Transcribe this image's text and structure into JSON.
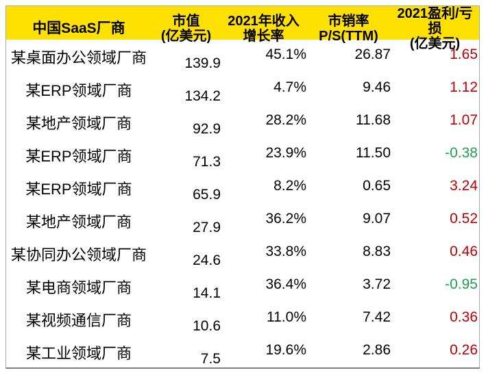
{
  "colors": {
    "header_bg": "#ffe100",
    "header_text": "#000000",
    "body_text": "#000000",
    "profit_positive": "#c00000",
    "profit_negative": "#21a04e",
    "border": "#a8a8a8"
  },
  "header": {
    "vendor": "中国SaaS厂商",
    "cap_line1": "市值",
    "cap_line2": "(亿美元)",
    "growth_line1": "2021年收入",
    "growth_line2": "增长率",
    "ps_line1": "市销率",
    "ps_line2": "P/S(TTM)",
    "profit_line1": "2021盈利/亏损",
    "profit_line2": "(亿美元)"
  },
  "rows": [
    {
      "vendor": "某桌面办公领域厂商",
      "cap": "139.9",
      "growth": "45.1%",
      "ps": "26.87",
      "profit": "1.65",
      "profit_color": "#c00000"
    },
    {
      "vendor": "某ERP领域厂商",
      "cap": "134.2",
      "growth": "4.7%",
      "ps": "9.46",
      "profit": "1.12",
      "profit_color": "#c00000"
    },
    {
      "vendor": "某地产领域厂商",
      "cap": "92.9",
      "growth": "28.2%",
      "ps": "11.68",
      "profit": "1.07",
      "profit_color": "#c00000"
    },
    {
      "vendor": "某ERP领域厂商",
      "cap": "71.3",
      "growth": "23.9%",
      "ps": "11.50",
      "profit": "-0.38",
      "profit_color": "#21a04e"
    },
    {
      "vendor": "某ERP领域厂商",
      "cap": "65.9",
      "growth": "8.2%",
      "ps": "0.65",
      "profit": "3.24",
      "profit_color": "#c00000"
    },
    {
      "vendor": "某地产领域厂商",
      "cap": "27.9",
      "growth": "36.2%",
      "ps": "9.07",
      "profit": "0.52",
      "profit_color": "#c00000"
    },
    {
      "vendor": "某协同办公领域厂商",
      "cap": "24.6",
      "growth": "33.8%",
      "ps": "8.83",
      "profit": "0.46",
      "profit_color": "#c00000"
    },
    {
      "vendor": "某电商领域厂商",
      "cap": "14.1",
      "growth": "36.4%",
      "ps": "3.72",
      "profit": "-0.95",
      "profit_color": "#21a04e"
    },
    {
      "vendor": "某视频通信厂商",
      "cap": "10.6",
      "growth": "11.0%",
      "ps": "7.42",
      "profit": "0.36",
      "profit_color": "#c00000"
    },
    {
      "vendor": "某工业领域厂商",
      "cap": "7.5",
      "growth": "19.6%",
      "ps": "2.86",
      "profit": "0.26",
      "profit_color": "#c00000"
    }
  ],
  "chart_data": {
    "type": "table",
    "columns": [
      "中国SaaS厂商",
      "市值(亿美元)",
      "2021年收入增长率",
      "市销率P/S(TTM)",
      "2021盈利/亏损(亿美元)"
    ],
    "rows": [
      [
        "某桌面办公领域厂商",
        139.9,
        "45.1%",
        26.87,
        1.65
      ],
      [
        "某ERP领域厂商",
        134.2,
        "4.7%",
        9.46,
        1.12
      ],
      [
        "某地产领域厂商",
        92.9,
        "28.2%",
        11.68,
        1.07
      ],
      [
        "某ERP领域厂商",
        71.3,
        "23.9%",
        11.5,
        -0.38
      ],
      [
        "某ERP领域厂商",
        65.9,
        "8.2%",
        0.65,
        3.24
      ],
      [
        "某地产领域厂商",
        27.9,
        "36.2%",
        9.07,
        0.52
      ],
      [
        "某协同办公领域厂商",
        24.6,
        "33.8%",
        8.83,
        0.46
      ],
      [
        "某电商领域厂商",
        14.1,
        "36.4%",
        3.72,
        -0.95
      ],
      [
        "某视频通信厂商",
        10.6,
        "11.0%",
        7.42,
        0.36
      ],
      [
        "某工业领域厂商",
        7.5,
        "19.6%",
        2.86,
        0.26
      ]
    ],
    "notes": "profit column rendered red when positive, green when negative"
  }
}
